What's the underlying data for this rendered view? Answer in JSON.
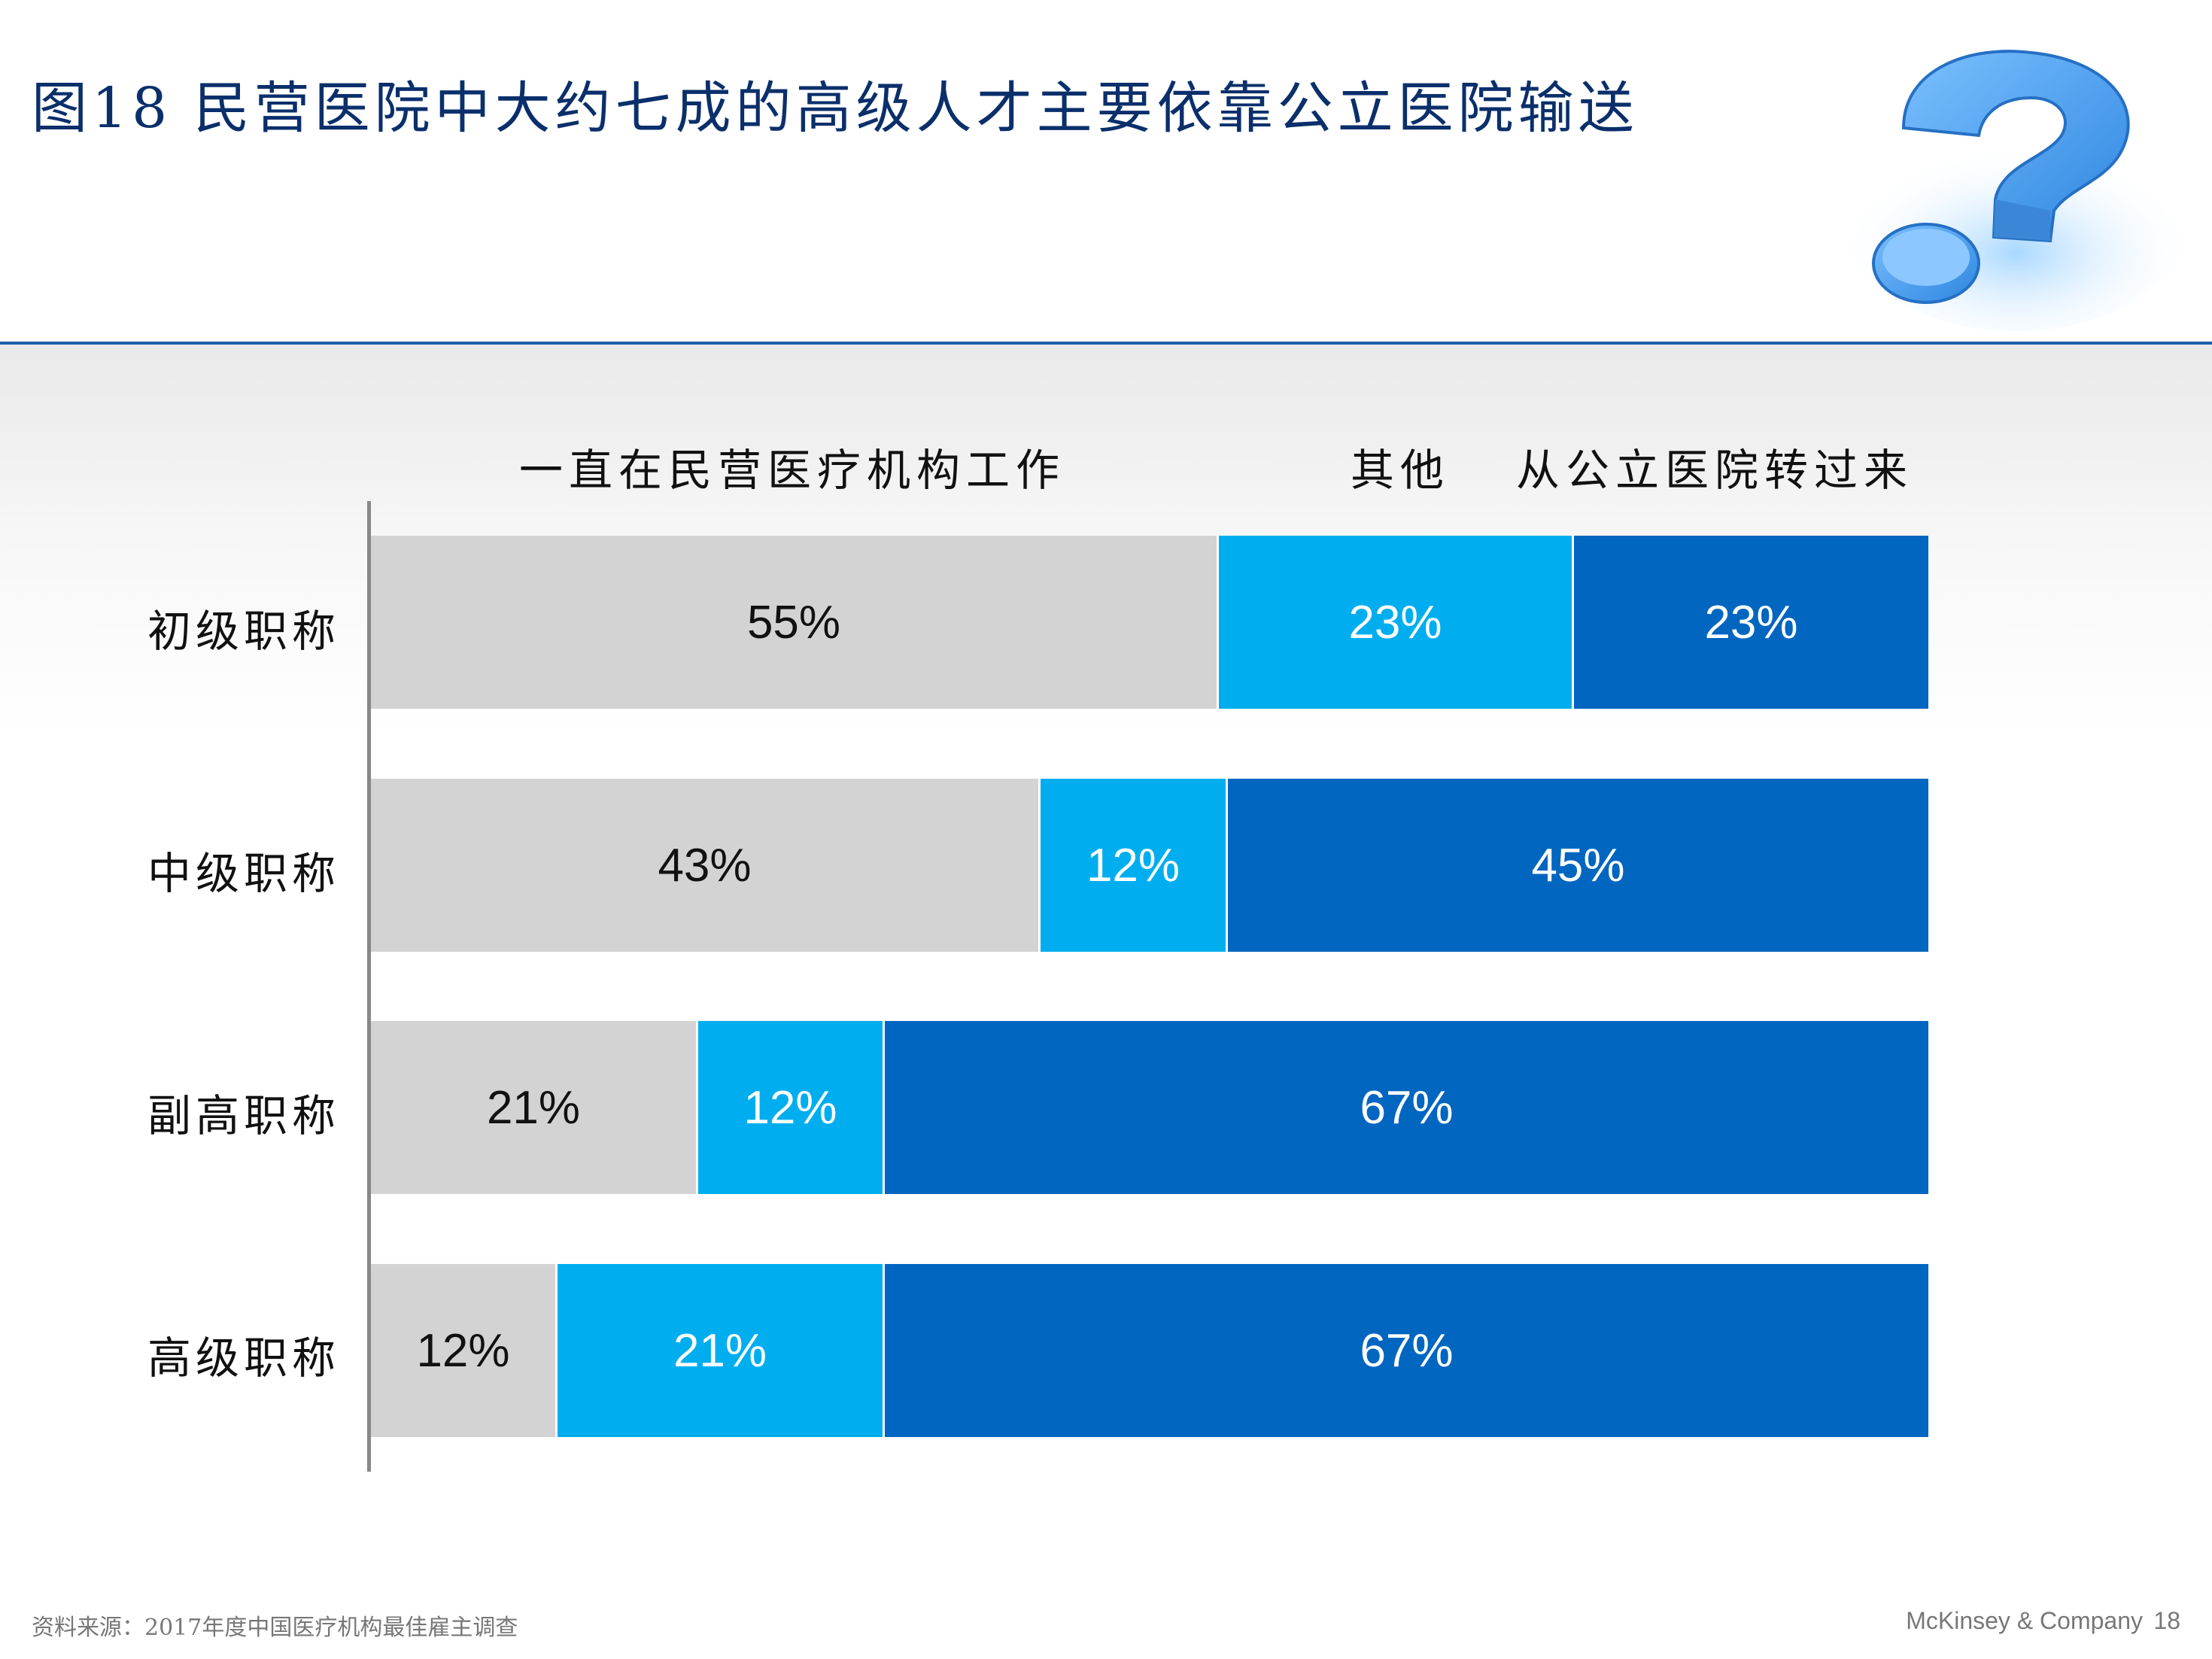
{
  "title": "图18 民营医院中大约七成的高级人才主要依靠公立医院输送",
  "colors": {
    "title": "#0a2f6b",
    "series": [
      "#d3d3d3",
      "#00aeef",
      "#0066c0"
    ],
    "label_dark": "#111111",
    "label_light": "#ffffff"
  },
  "icon": "question-mark-3d-icon",
  "chart_data": {
    "type": "bar",
    "orientation": "horizontal",
    "stacked": true,
    "categories": [
      "初级职称",
      "中级职称",
      "副高职称",
      "高级职称"
    ],
    "series": [
      {
        "name": "一直在民营医疗机构工作",
        "values": [
          55,
          43,
          21,
          12
        ],
        "labels": [
          "55%",
          "43%",
          "21%",
          "12%"
        ]
      },
      {
        "name": "其他",
        "values": [
          23,
          12,
          12,
          21
        ],
        "labels": [
          "23%",
          "12%",
          "12%",
          "21%"
        ]
      },
      {
        "name": "从公立医院转过来",
        "values": [
          23,
          45,
          67,
          67
        ],
        "labels": [
          "23%",
          "45%",
          "67%",
          "67%"
        ]
      }
    ],
    "legend_position": "top",
    "grid": false
  },
  "footer": {
    "source": "资料来源：2017年度中国医疗机构最佳雇主调查",
    "brand": "McKinsey & Company",
    "page": "18"
  }
}
